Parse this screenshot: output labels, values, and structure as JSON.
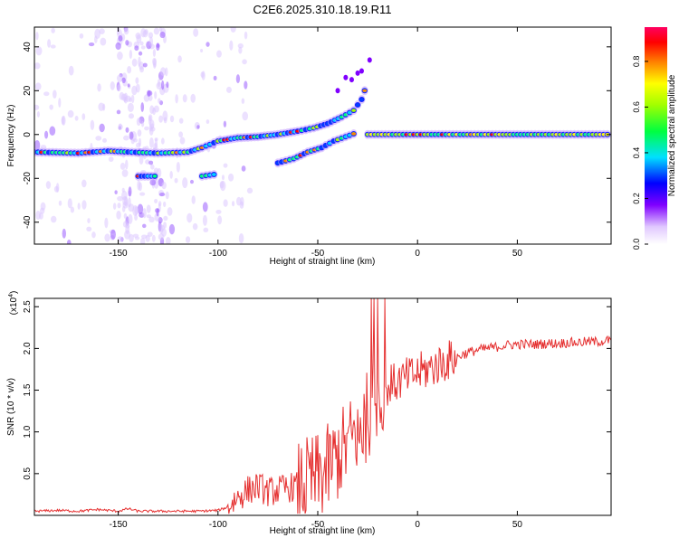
{
  "title": "C2E6.2025.310.18.19.R11",
  "chart_data": [
    {
      "type": "heatmap",
      "title": "C2E6.2025.310.18.19.R11",
      "xlabel": "Height of straight line (km)",
      "ylabel": "Frequency (Hz)",
      "xlim": [
        -192,
        97
      ],
      "ylim": [
        -50,
        49
      ],
      "xticks": [
        -150,
        -100,
        -50,
        0,
        50
      ],
      "yticks": [
        -40,
        -20,
        0,
        20,
        40
      ],
      "colorbar": {
        "label": "Normalized spectral amplitude",
        "range": [
          0,
          0.95
        ],
        "ticks": [
          0.0,
          0.2,
          0.4,
          0.6,
          0.8
        ]
      },
      "ridges": [
        {
          "name": "main-left",
          "points": [
            [
              -192,
              -8
            ],
            [
              -170,
              -8.5
            ],
            [
              -155,
              -7.5
            ],
            [
              -145,
              -8
            ],
            [
              -130,
              -8.5
            ],
            [
              -115,
              -8
            ],
            [
              -108,
              -6
            ],
            [
              -100,
              -3
            ],
            [
              -90,
              -1.5
            ],
            [
              -80,
              -1
            ],
            [
              -70,
              0
            ],
            [
              -60,
              1.5
            ],
            [
              -52,
              3
            ],
            [
              -45,
              5
            ],
            [
              -38,
              8
            ],
            [
              -32,
              11
            ],
            [
              -28,
              16
            ],
            [
              -25,
              24
            ]
          ]
        },
        {
          "name": "lower-branch",
          "points": [
            [
              -70,
              -13
            ],
            [
              -62,
              -11
            ],
            [
              -55,
              -8
            ],
            [
              -48,
              -6
            ],
            [
              -42,
              -3
            ],
            [
              -36,
              -1
            ],
            [
              -30,
              1
            ]
          ]
        },
        {
          "name": "flat-right",
          "points": [
            [
              -25,
              0
            ],
            [
              0,
              0
            ],
            [
              25,
              0
            ],
            [
              50,
              0
            ],
            [
              75,
              0
            ],
            [
              97,
              0
            ]
          ]
        },
        {
          "name": "side-spot",
          "points": [
            [
              -140,
              -19
            ],
            [
              -130,
              -19
            ]
          ]
        },
        {
          "name": "small-spot",
          "points": [
            [
              -108,
              -19
            ],
            [
              -100,
              -18
            ]
          ]
        }
      ]
    },
    {
      "type": "line",
      "xlabel": "Height of straight line (km)",
      "ylabel": "SNR (10 * v/v)",
      "yexponent": "(x10",
      "yexponent_power": "4",
      "yexponent_close": ")",
      "xlim": [
        -192,
        97
      ],
      "ylim": [
        0,
        2.6
      ],
      "xticks": [
        -150,
        -100,
        -50,
        0,
        50
      ],
      "yticks": [
        0.5,
        1.0,
        1.5,
        2.0,
        2.5
      ],
      "series": [
        {
          "name": "SNR",
          "color": "#e53030",
          "x": [
            -192,
            -180,
            -170,
            -160,
            -150,
            -145,
            -140,
            -130,
            -120,
            -110,
            -100,
            -95,
            -90,
            -85,
            -80,
            -75,
            -70,
            -65,
            -60,
            -55,
            -50,
            -45,
            -40,
            -35,
            -30,
            -25,
            -20,
            -15,
            -10,
            -5,
            0,
            5,
            10,
            15,
            20,
            25,
            30,
            35,
            40,
            45,
            50,
            55,
            60,
            65,
            70,
            75,
            80,
            85,
            90,
            97
          ],
          "y": [
            0.05,
            0.06,
            0.05,
            0.07,
            0.05,
            0.08,
            0.05,
            0.05,
            0.05,
            0.05,
            0.06,
            0.1,
            0.22,
            0.3,
            0.35,
            0.28,
            0.3,
            0.33,
            0.35,
            0.4,
            0.45,
            0.55,
            0.7,
            0.85,
            1.0,
            1.2,
            1.45,
            1.55,
            1.6,
            1.65,
            1.7,
            1.75,
            1.8,
            1.85,
            1.9,
            1.95,
            1.98,
            2.0,
            2.02,
            2.04,
            2.05,
            2.05,
            2.05,
            2.06,
            2.06,
            2.07,
            2.07,
            2.08,
            2.08,
            2.1
          ]
        }
      ]
    }
  ]
}
